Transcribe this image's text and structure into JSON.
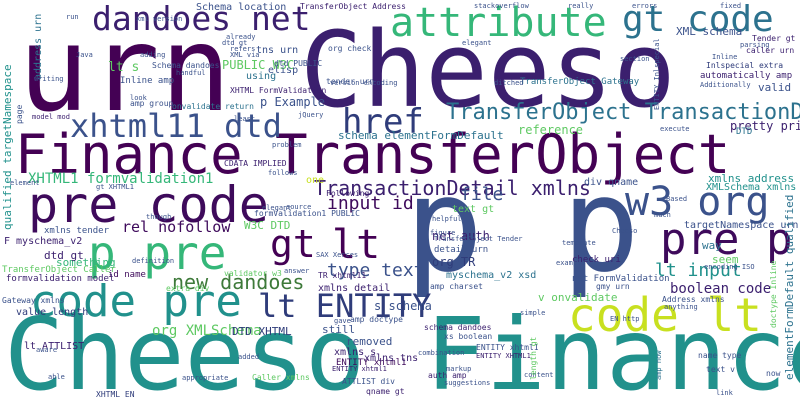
{
  "words": [
    {
      "text": "urn",
      "color": "#440154"
    },
    {
      "text": "Cheeso",
      "color": "#3b1f6e"
    },
    {
      "text": "Cheeso Finance",
      "color": "#21918c"
    },
    {
      "text": "Finance TransferObject",
      "color": "#440154"
    },
    {
      "text": "pre code",
      "color": "#3e0a5b"
    },
    {
      "text": "p p",
      "color": "#3b528b"
    },
    {
      "text": "attribute",
      "color": "#35b779"
    },
    {
      "text": "dandoes net",
      "color": "#3b1f6e"
    },
    {
      "text": "gt code",
      "color": "#2c728e"
    },
    {
      "text": "xhtml11 dtd",
      "color": "#3b528b"
    },
    {
      "text": "code pre",
      "color": "#21918c"
    },
    {
      "text": "code lt",
      "color": "#c8e020"
    },
    {
      "text": "w3 org",
      "color": "#3b528b"
    },
    {
      "text": "pre p",
      "color": "#3e0a5b"
    },
    {
      "text": "p pre",
      "color": "#35b779"
    },
    {
      "text": "gt",
      "color": "#440154"
    },
    {
      "text": "lt",
      "color": "#440154"
    },
    {
      "text": "href",
      "color": "#2f3c7a"
    },
    {
      "text": "lt ENTITY",
      "color": "#2f3c7a"
    },
    {
      "text": "TransferObject TransactionDetail",
      "color": "#2c728e"
    },
    {
      "text": "TransactionDetail xmlns",
      "color": "#3b1f6e"
    },
    {
      "text": "new dandoes",
      "color": "#3e7a3a"
    },
    {
      "text": "XHTML1 formvalidation1",
      "color": "#35b779"
    },
    {
      "text": "input id",
      "color": "#3e0a5b"
    },
    {
      "text": "rel nofollow",
      "color": "#3e0a5b"
    },
    {
      "text": "type text",
      "color": "#3b528b"
    },
    {
      "text": "lt input",
      "color": "#21918c"
    },
    {
      "text": "file",
      "color": "#3b528b"
    },
    {
      "text": "boolean code",
      "color": "#3b1f6e"
    },
    {
      "text": "lt s",
      "color": "#5ec962"
    },
    {
      "text": "XML schema",
      "color": "#3b528b"
    },
    {
      "text": "PUBLIC W3C",
      "color": "#5ec962"
    },
    {
      "text": "tns urn",
      "color": "#3b528b"
    },
    {
      "text": "Schema location",
      "color": "#3b528b"
    },
    {
      "text": "p Example",
      "color": "#3b528b"
    },
    {
      "text": "reference",
      "color": "#5ec962"
    },
    {
      "text": "schema elementFormDefault",
      "color": "#2c728e"
    },
    {
      "text": "net auth",
      "color": "#3b1f6e"
    },
    {
      "text": "org TR",
      "color": "#2f3c7a"
    },
    {
      "text": "text gt",
      "color": "#5ec962"
    },
    {
      "text": "xmlns address",
      "color": "#21918c"
    },
    {
      "text": "XMLSchema xmlns",
      "color": "#21918c"
    },
    {
      "text": "pretty print",
      "color": "#3b1f6e"
    },
    {
      "text": "targetNamespace urn",
      "color": "#3b528b"
    },
    {
      "text": "div qname",
      "color": "#3b528b"
    },
    {
      "text": "org XMLSchema",
      "color": "#5ec962"
    },
    {
      "text": "DTD XHTML",
      "color": "#2f3c7a"
    },
    {
      "text": "W3C DTD",
      "color": "#5ec962"
    },
    {
      "text": "something",
      "color": "#35b779"
    },
    {
      "text": "dtd gt",
      "color": "#3b1f6e"
    },
    {
      "text": "F myschema_v2",
      "color": "#3b1f6e"
    },
    {
      "text": "value length",
      "color": "#2f3c7a"
    },
    {
      "text": "lt ATTLIST",
      "color": "#3b1f6e"
    },
    {
      "text": "ENTITY xhtml1",
      "color": "#3e0a5b"
    },
    {
      "text": "still",
      "color": "#3b528b"
    },
    {
      "text": "removed",
      "color": "#3b528b"
    },
    {
      "text": "xmlns s",
      "color": "#3b1f6e"
    },
    {
      "text": "xmlns tns",
      "color": "#3b1f6e"
    },
    {
      "text": "s schema",
      "color": "#3b528b"
    },
    {
      "text": "xmlns detail",
      "color": "#3b1f6e"
    },
    {
      "text": "v onvalidate",
      "color": "#5ec962"
    },
    {
      "text": "way",
      "color": "#2c728e"
    },
    {
      "text": "seem",
      "color": "#5ec962"
    },
    {
      "text": "elementFormDefault qualified",
      "color": "#2c728e"
    },
    {
      "text": "qualified targetNamespace",
      "color": "#21918c"
    },
    {
      "text": "address urn",
      "color": "#2c728e"
    },
    {
      "text": "xmlns tender",
      "color": "#3b528b"
    },
    {
      "text": "id name",
      "color": "#3e0a5b"
    },
    {
      "text": "TransferObject Caller",
      "color": "#5ec962"
    },
    {
      "text": "formvalidation model",
      "color": "#3b1f6e"
    },
    {
      "text": "Gateway xmlns",
      "color": "#3b528b"
    },
    {
      "text": "XHTML EN",
      "color": "#2f3c7a"
    },
    {
      "text": "Inline amp",
      "color": "#3b528b"
    },
    {
      "text": "elisp",
      "color": "#3b528b"
    },
    {
      "text": "using",
      "color": "#2c728e"
    },
    {
      "text": "Tender gt",
      "color": "#3b1f6e"
    },
    {
      "text": "valid",
      "color": "#3b528b"
    },
    {
      "text": "Inlspecial extra",
      "color": "#2f3c7a"
    },
    {
      "text": "caller urn",
      "color": "#3b1f6e"
    },
    {
      "text": "TransferObject Gateway",
      "color": "#2c728e"
    },
    {
      "text": "schema dandoes",
      "color": "#3b1f6e"
    },
    {
      "text": "name type",
      "color": "#3b528b"
    },
    {
      "text": "auth amp",
      "color": "#3b1f6e"
    },
    {
      "text": "qname gt",
      "color": "#3b1f6e"
    },
    {
      "text": "Caller xmlns",
      "color": "#5ec962"
    },
    {
      "text": "ATTLIST div",
      "color": "#3b528b"
    },
    {
      "text": "CDATA IMPLIED",
      "color": "#3b1f6e"
    },
    {
      "text": "XHTML FormValidation",
      "color": "#3b1f6e"
    },
    {
      "text": "onvalidate return",
      "color": "#2c728e"
    },
    {
      "text": "DTD",
      "color": "#2c728e"
    },
    {
      "text": "Following",
      "color": "#3b1f6e"
    },
    {
      "text": "one",
      "color": "#c8e020"
    },
    {
      "text": "formValidation1 PUBLIC",
      "color": "#3b528b"
    },
    {
      "text": "detail urn",
      "color": "#3b528b"
    },
    {
      "text": "check uri",
      "color": "#3b1f6e"
    },
    {
      "text": "amp charset",
      "color": "#3b528b"
    },
    {
      "text": "gmy urn",
      "color": "#3b528b"
    },
    {
      "text": "Address xmlns",
      "color": "#3b528b"
    },
    {
      "text": "net FormValidation",
      "color": "#3b528b"
    },
    {
      "text": "myschema_v2 xsd",
      "color": "#2c728e"
    },
    {
      "text": "dtd PUBLIC",
      "color": "#3b528b"
    },
    {
      "text": "tender urn",
      "color": "#3b528b"
    },
    {
      "text": "org check",
      "color": "#3b528b"
    },
    {
      "text": "amp group",
      "color": "#3b528b"
    },
    {
      "text": "Schema dandoes",
      "color": "#3b528b"
    },
    {
      "text": "TR xhtml11",
      "color": "#3b1f6e"
    },
    {
      "text": "amp doctype",
      "color": "#3b528b"
    },
    {
      "text": "ENTITY xhtml1",
      "color": "#3b528b"
    },
    {
      "text": "xs boolean",
      "color": "#3b528b"
    },
    {
      "text": "TransferObject Address",
      "color": "#3b1f6e"
    },
    {
      "text": "stackoverflow",
      "color": "#3b528b"
    },
    {
      "text": "really",
      "color": "#3b528b"
    },
    {
      "text": "errors",
      "color": "#3b528b"
    },
    {
      "text": "fixed",
      "color": "#3b528b"
    },
    {
      "text": "parsing",
      "color": "#3b528b"
    },
    {
      "text": "section",
      "color": "#3b528b"
    },
    {
      "text": "elegant",
      "color": "#3b528b"
    },
    {
      "text": "version encoding",
      "color": "#3b528b"
    },
    {
      "text": "handful",
      "color": "#3b528b"
    },
    {
      "text": "ditched",
      "color": "#3b528b"
    },
    {
      "text": "automatically amp",
      "color": "#3b1f6e"
    },
    {
      "text": "Additionally",
      "color": "#3b528b"
    },
    {
      "text": "Inline",
      "color": "#3b528b"
    },
    {
      "text": "execute",
      "color": "#3b528b"
    },
    {
      "text": "elegant",
      "color": "#3b528b"
    },
    {
      "text": "example",
      "color": "#3b528b"
    },
    {
      "text": "figure",
      "color": "#3b528b"
    },
    {
      "text": "helpful",
      "color": "#3b528b"
    },
    {
      "text": "template",
      "color": "#3b528b"
    },
    {
      "text": "markup",
      "color": "#3b528b"
    },
    {
      "text": "content",
      "color": "#3b528b"
    },
    {
      "text": "simple",
      "color": "#3b528b"
    },
    {
      "text": "link",
      "color": "#3b528b"
    },
    {
      "text": "validator w3",
      "color": "#5ec962"
    },
    {
      "text": "extra div",
      "color": "#5ec962"
    },
    {
      "text": "definition",
      "color": "#3b528b"
    },
    {
      "text": "source",
      "color": "#3b528b"
    },
    {
      "text": "answer",
      "color": "#3b528b"
    },
    {
      "text": "SAX Xerces",
      "color": "#3b528b"
    },
    {
      "text": "Cheeso",
      "color": "#3b528b"
    },
    {
      "text": "EN http",
      "color": "#3b528b"
    },
    {
      "text": "anything",
      "color": "#3b528b"
    },
    {
      "text": "combination",
      "color": "#3b528b"
    },
    {
      "text": "suggestions",
      "color": "#3b528b"
    },
    {
      "text": "model mod",
      "color": "#3b1f6e"
    },
    {
      "text": "element",
      "color": "#3b528b"
    },
    {
      "text": "page",
      "color": "#3b528b"
    },
    {
      "text": "though",
      "color": "#3b528b"
    },
    {
      "text": "appropriate",
      "color": "#3b528b"
    },
    {
      "text": "ENTITY XHTML1",
      "color": "#3b1f6e"
    },
    {
      "text": "ENTITY xhtml1",
      "color": "#3b1f6e"
    },
    {
      "text": "length gt",
      "color": "#5ec962"
    },
    {
      "text": "doctype Inline",
      "color": "#5ec962"
    },
    {
      "text": "TransferObject Tender",
      "color": "#3b528b"
    },
    {
      "text": "encoding ISO",
      "color": "#3b528b"
    },
    {
      "text": "Based",
      "color": "#3b528b"
    },
    {
      "text": "much",
      "color": "#3b528b"
    },
    {
      "text": "gt XHTML1",
      "color": "#3b528b"
    },
    {
      "text": "amp now",
      "color": "#2c728e"
    },
    {
      "text": "text v",
      "color": "#3b528b"
    },
    {
      "text": "now",
      "color": "#3b528b"
    },
    {
      "text": "ENTITY Inlspecial",
      "color": "#3b528b"
    },
    {
      "text": "dtd gt",
      "color": "#3b528b"
    },
    {
      "text": "look",
      "color": "#3b528b"
    },
    {
      "text": "least",
      "color": "#3b528b"
    },
    {
      "text": "adding",
      "color": "#3b528b"
    },
    {
      "text": "Java",
      "color": "#3b528b"
    },
    {
      "text": "writing",
      "color": "#3b528b"
    },
    {
      "text": "refers",
      "color": "#3b528b"
    },
    {
      "text": "XML via",
      "color": "#3b528b"
    },
    {
      "text": "already",
      "color": "#3b528b"
    },
    {
      "text": "run",
      "color": "#3b528b"
    },
    {
      "text": "problem",
      "color": "#3b528b"
    },
    {
      "text": "jQuery",
      "color": "#3b528b"
    },
    {
      "text": "follows",
      "color": "#3b528b"
    },
    {
      "text": "aware",
      "color": "#3b528b"
    },
    {
      "text": "gave",
      "color": "#3b528b"
    },
    {
      "text": "added",
      "color": "#3b528b"
    },
    {
      "text": "able",
      "color": "#3b528b"
    },
    {
      "text": "xml version",
      "color": "#3b528b"
    }
  ]
}
